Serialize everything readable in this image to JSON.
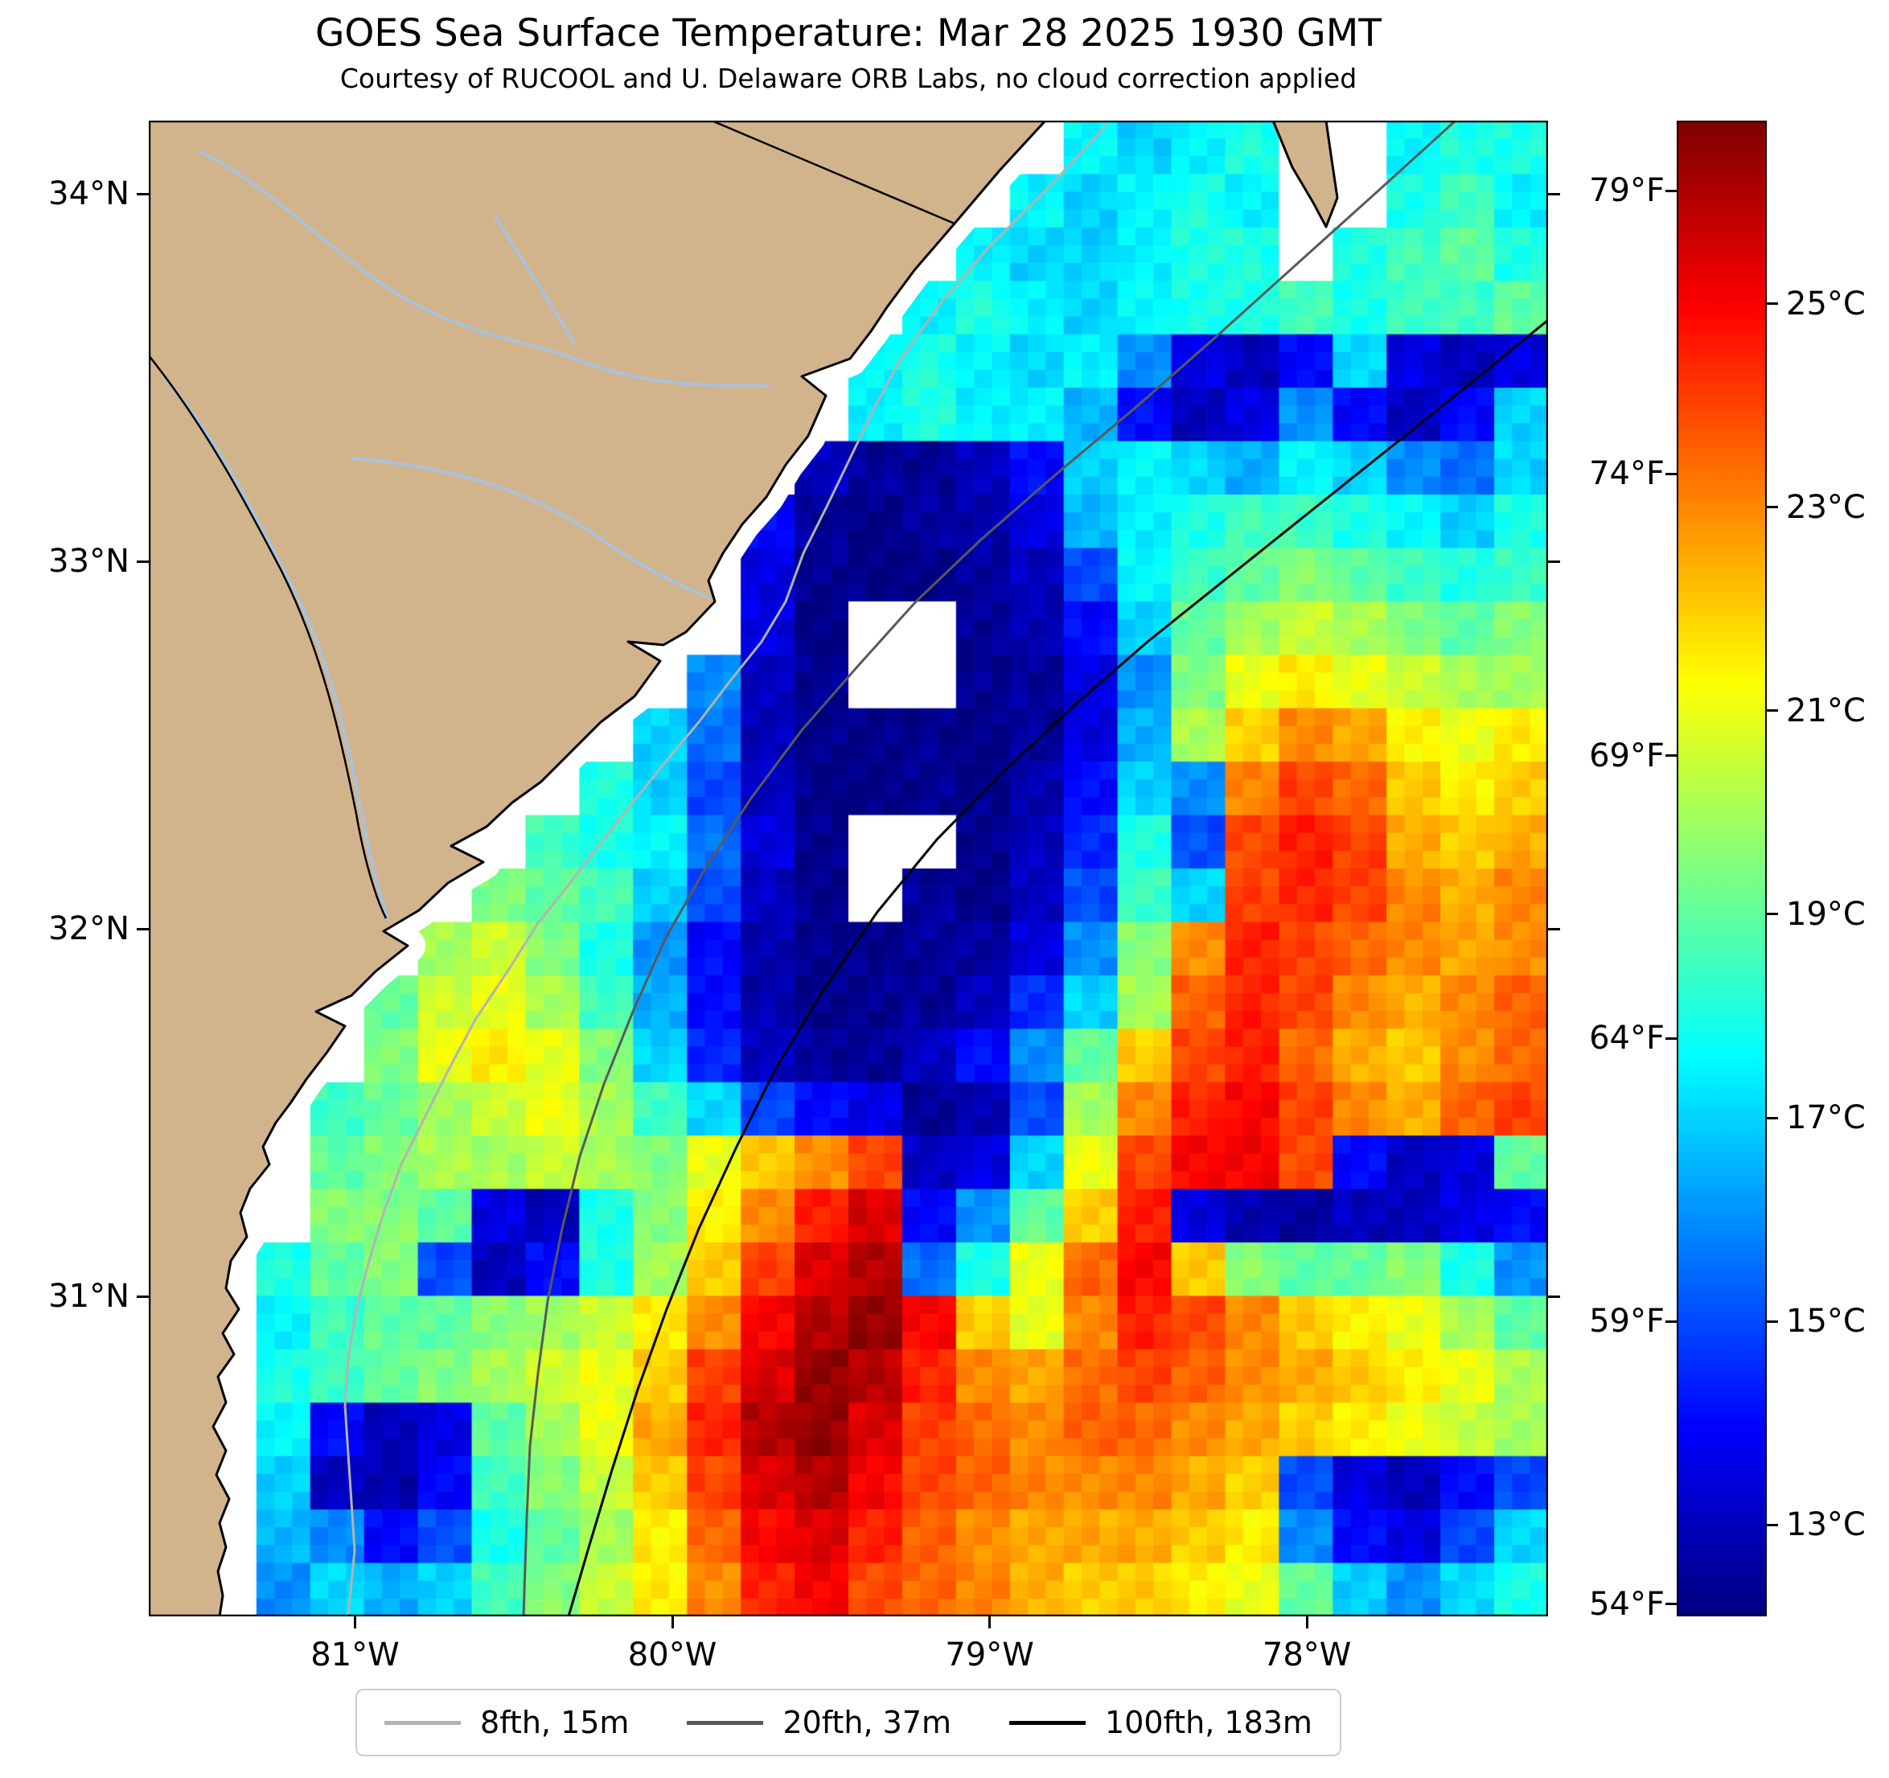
{
  "title": "GOES Sea Surface Temperature: Mar 28 2025 1930 GMT",
  "subtitle": "Courtesy of RUCOOL and U. Delaware ORB Labs, no cloud correction applied",
  "axes": {
    "lon_range": [
      -81.65,
      -77.24
    ],
    "lat_range": [
      30.13,
      34.2
    ],
    "x_ticks": [
      {
        "label": "81°W",
        "lon": -81
      },
      {
        "label": "80°W",
        "lon": -80
      },
      {
        "label": "79°W",
        "lon": -79
      },
      {
        "label": "78°W",
        "lon": -78
      }
    ],
    "y_ticks": [
      {
        "label": "34°N",
        "lat": 34
      },
      {
        "label": "33°N",
        "lat": 33
      },
      {
        "label": "32°N",
        "lat": 32
      },
      {
        "label": "31°N",
        "lat": 31
      }
    ]
  },
  "colorbar": {
    "min_c": 12.1,
    "max_c": 26.8,
    "colormap": "jet",
    "f_ticks": [
      {
        "label": "79°F",
        "c": 26.11
      },
      {
        "label": "74°F",
        "c": 23.33
      },
      {
        "label": "69°F",
        "c": 20.56
      },
      {
        "label": "64°F",
        "c": 17.78
      },
      {
        "label": "59°F",
        "c": 15.0
      },
      {
        "label": "54°F",
        "c": 12.22
      }
    ],
    "c_ticks": [
      {
        "label": "25°C",
        "c": 25
      },
      {
        "label": "23°C",
        "c": 23
      },
      {
        "label": "21°C",
        "c": 21
      },
      {
        "label": "19°C",
        "c": 19
      },
      {
        "label": "17°C",
        "c": 17
      },
      {
        "label": "15°C",
        "c": 15
      },
      {
        "label": "13°C",
        "c": 13
      }
    ]
  },
  "legend": [
    {
      "label": "8fth, 15m",
      "color": "#b3b3b3"
    },
    {
      "label": "20fth, 37m",
      "color": "#595959"
    },
    {
      "label": "100fth, 183m",
      "color": "#000000"
    }
  ],
  "colors": {
    "land": "#d2b48c",
    "no_data": "#ffffff",
    "coastline": "#000000",
    "river": "#a9c2dc",
    "state_border": "#000000"
  },
  "chart_data": {
    "type": "heatmap",
    "title": "GOES Sea Surface Temperature: Mar 28 2025 1930 GMT",
    "units": "°C",
    "colormap": "jet",
    "vmin": 12.1,
    "vmax": 26.8,
    "lon_range": [
      -81.65,
      -77.24
    ],
    "lat_range": [
      30.13,
      34.2
    ],
    "grid_cols": 26,
    "grid_rows": 28,
    "land_code": -1,
    "nodata_code": 0,
    "sst_grid": [
      [
        -1,
        -1,
        -1,
        -1,
        -1,
        -1,
        -1,
        -1,
        -1,
        -1,
        -1,
        -1,
        -1,
        -1,
        -1,
        -1,
        0,
        17.5,
        17,
        17.5,
        18,
        0,
        0,
        17.5,
        18,
        18
      ],
      [
        -1,
        -1,
        -1,
        -1,
        -1,
        -1,
        -1,
        -1,
        -1,
        -1,
        -1,
        -1,
        -1,
        -1,
        -1,
        0,
        17.5,
        17,
        17.5,
        18,
        17.5,
        0,
        0,
        18,
        18.5,
        17.5
      ],
      [
        -1,
        -1,
        -1,
        -1,
        -1,
        -1,
        -1,
        -1,
        -1,
        -1,
        -1,
        -1,
        -1,
        -1,
        0,
        17.5,
        17,
        17,
        17.5,
        18,
        18,
        0,
        18,
        18.5,
        19,
        18
      ],
      [
        -1,
        -1,
        -1,
        -1,
        -1,
        -1,
        -1,
        -1,
        -1,
        -1,
        -1,
        -1,
        -1,
        0,
        17.5,
        18,
        17.5,
        17,
        17.5,
        18,
        18,
        18.5,
        18,
        18.5,
        18.5,
        19
      ],
      [
        -1,
        -1,
        -1,
        -1,
        -1,
        -1,
        -1,
        -1,
        -1,
        -1,
        -1,
        -1,
        0,
        17.5,
        18,
        17.5,
        17,
        17.5,
        16,
        13.5,
        13,
        14,
        17,
        13.5,
        13,
        13.5
      ],
      [
        -1,
        -1,
        -1,
        -1,
        -1,
        -1,
        -1,
        -1,
        -1,
        -1,
        -1,
        -1,
        0,
        17.5,
        18,
        17.5,
        17.5,
        16.5,
        14,
        13,
        13.5,
        16,
        14,
        13,
        14,
        17
      ],
      [
        -1,
        -1,
        -1,
        -1,
        -1,
        -1,
        -1,
        -1,
        -1,
        -1,
        -1,
        0,
        13,
        12.5,
        12.5,
        13,
        14,
        17,
        17.5,
        17,
        16.5,
        17.5,
        17,
        16,
        15.5,
        17
      ],
      [
        -1,
        -1,
        -1,
        -1,
        -1,
        -1,
        -1,
        -1,
        -1,
        -1,
        0,
        14,
        12.5,
        12.2,
        12.5,
        12.8,
        13.5,
        16.5,
        17.5,
        18,
        18.5,
        18.5,
        18,
        17.5,
        17,
        18
      ],
      [
        -1,
        -1,
        -1,
        -1,
        -1,
        -1,
        -1,
        -1,
        -1,
        -1,
        0,
        13.5,
        12.3,
        12.2,
        12.2,
        12.5,
        13,
        15,
        17.5,
        18.5,
        19,
        19.5,
        19,
        18.5,
        18,
        18.5
      ],
      [
        -1,
        -1,
        -1,
        -1,
        -1,
        -1,
        -1,
        -1,
        -1,
        -1,
        0,
        13.5,
        12.2,
        0,
        0,
        12.5,
        12.8,
        14,
        17,
        19,
        20,
        20.5,
        20,
        19.5,
        19,
        19.5
      ],
      [
        -1,
        -1,
        -1,
        -1,
        -1,
        -1,
        -1,
        -1,
        -1,
        0,
        16,
        13,
        12.3,
        0,
        0,
        12.3,
        12.5,
        13.5,
        16,
        19.5,
        21,
        21.5,
        21,
        20.5,
        20,
        20
      ],
      [
        -1,
        -1,
        -1,
        -1,
        -1,
        -1,
        -1,
        -1,
        0,
        17,
        15.5,
        13,
        12.3,
        12.2,
        12.3,
        12.2,
        12.5,
        13.5,
        16.5,
        20,
        22,
        23,
        22.5,
        21.5,
        21,
        21.5
      ],
      [
        -1,
        -1,
        -1,
        -1,
        -1,
        -1,
        -1,
        0,
        18,
        17,
        15,
        13,
        12.2,
        12.2,
        12.3,
        12.2,
        12.8,
        14,
        17,
        16,
        23,
        24,
        23.5,
        22,
        21.5,
        22
      ],
      [
        -1,
        -1,
        -1,
        -1,
        -1,
        -1,
        0,
        18.5,
        18,
        17.5,
        15.5,
        13.5,
        12.3,
        0,
        0,
        12.3,
        13,
        14.5,
        18,
        15,
        24,
        24.5,
        24,
        22.5,
        22,
        22.5
      ],
      [
        -1,
        -1,
        -1,
        -1,
        -1,
        0,
        19.5,
        19,
        18.5,
        17,
        15,
        13,
        12.3,
        0,
        12.5,
        12.3,
        13,
        15,
        18.5,
        17,
        24,
        24.5,
        24,
        23,
        22.5,
        23
      ],
      [
        -1,
        -1,
        -1,
        -1,
        0,
        20,
        20.5,
        19.5,
        18,
        16,
        14,
        12.8,
        12.3,
        12.3,
        12.5,
        12.5,
        13.5,
        16,
        19.5,
        23,
        24.5,
        24,
        23.5,
        23,
        22.5,
        23
      ],
      [
        -1,
        -1,
        -1,
        0,
        19,
        20.5,
        21,
        20,
        18.5,
        16.5,
        14,
        12.8,
        12.3,
        12.3,
        12.5,
        13,
        14.5,
        17,
        20,
        23.5,
        24.5,
        24,
        23,
        22.5,
        23,
        23.5
      ],
      [
        -1,
        -1,
        -1,
        0,
        19.5,
        21,
        21.5,
        21,
        19.5,
        17,
        14.5,
        13,
        12.5,
        12.5,
        13,
        14,
        16,
        19,
        22,
        24,
        24.5,
        23.5,
        22.5,
        22,
        23,
        23.5
      ],
      [
        -1,
        -1,
        0,
        18.5,
        19,
        20,
        20.5,
        21,
        20,
        18.5,
        17,
        15,
        14,
        13.5,
        12.5,
        12.8,
        15,
        20,
        23,
        24.5,
        25,
        24,
        23,
        22.5,
        23.5,
        24
      ],
      [
        -1,
        -1,
        0,
        19,
        19.5,
        20,
        20,
        20.5,
        20,
        19.5,
        21,
        22,
        23,
        24,
        13,
        13.5,
        17,
        21,
        24,
        25,
        25,
        24,
        14,
        13,
        13.5,
        19
      ],
      [
        -1,
        -1,
        0,
        19.5,
        19.5,
        19,
        13.5,
        13,
        18,
        19.5,
        21.5,
        23,
        24.5,
        25.5,
        14,
        16,
        19,
        22,
        24.5,
        13.5,
        12.8,
        12.5,
        13,
        13,
        13.5,
        14
      ],
      [
        -1,
        0,
        18,
        19,
        19.5,
        15,
        13,
        14,
        18,
        20,
        22,
        24,
        25.5,
        26,
        15.5,
        18,
        21,
        23.5,
        25,
        22,
        19.5,
        19,
        19,
        19.5,
        18,
        16
      ],
      [
        -1,
        0,
        17.5,
        18.5,
        19,
        19,
        19.5,
        20,
        20.5,
        21.5,
        23,
        25,
        26,
        26.5,
        25,
        22,
        21,
        23,
        24.5,
        24,
        23,
        22,
        21.5,
        21,
        20,
        19
      ],
      [
        -1,
        0,
        18,
        18.5,
        19,
        19.5,
        20,
        20.5,
        21,
        22,
        24,
        25.5,
        26.5,
        26,
        24.5,
        23,
        22.5,
        23.5,
        24,
        23.5,
        23,
        22.5,
        22,
        21.5,
        21,
        20
      ],
      [
        -1,
        0,
        17.5,
        14,
        13,
        13.5,
        19,
        20,
        21,
        22.5,
        24.5,
        26,
        26.5,
        25.5,
        24,
        23.5,
        23,
        23.5,
        23.5,
        23,
        22.5,
        22,
        21.5,
        21,
        20.5,
        20
      ],
      [
        -1,
        0,
        17,
        13,
        12.8,
        14,
        18.5,
        19.5,
        20.5,
        22,
        24,
        25.5,
        26,
        25,
        24,
        23.5,
        23,
        23,
        23,
        22.5,
        22,
        15,
        13.5,
        13,
        14,
        15
      ],
      [
        -1,
        0,
        16.5,
        16,
        14,
        15,
        18,
        19,
        20,
        21.5,
        23.5,
        25,
        25.5,
        24.5,
        23.5,
        23,
        22.5,
        22.5,
        22.5,
        22,
        21.5,
        16,
        14,
        13.5,
        15,
        17
      ],
      [
        -1,
        0,
        16,
        17,
        16.5,
        17,
        18.5,
        19.5,
        20.5,
        21.5,
        23,
        24.5,
        25,
        24,
        23.5,
        23,
        22.5,
        22,
        22,
        21.5,
        21,
        19,
        17,
        16,
        17,
        18
      ]
    ]
  }
}
